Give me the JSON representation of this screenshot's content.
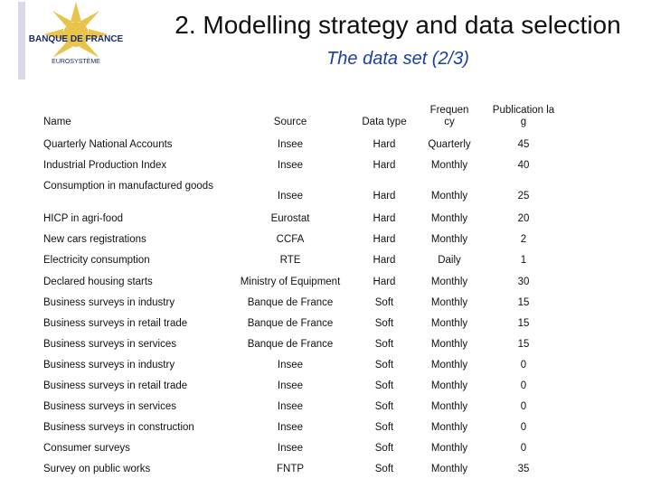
{
  "logo": {
    "name": "BANQUE DE FRANCE",
    "subtitle": "EUROSYSTÈME"
  },
  "header": {
    "title": "2. Modelling strategy and data selection",
    "subtitle": "The data set (2/3)"
  },
  "table": {
    "columns": [
      "Name",
      "Source",
      "Data type",
      "Frequency",
      "Publication lag"
    ],
    "rows": [
      [
        "Quarterly National Accounts",
        "Insee",
        "Hard",
        "Quarterly",
        "45"
      ],
      [
        "Industrial Production Index",
        "Insee",
        "Hard",
        "Monthly",
        "40"
      ],
      [
        "Consumption in manufactured goods",
        "Insee",
        "Hard",
        "Monthly",
        "25"
      ],
      [
        "HICP in agri-food",
        "Eurostat",
        "Hard",
        "Monthly",
        "20"
      ],
      [
        "New cars registrations",
        "CCFA",
        "Hard",
        "Monthly",
        "2"
      ],
      [
        "Electricity consumption",
        "RTE",
        "Hard",
        "Daily",
        "1"
      ],
      [
        "Declared housing starts",
        "Ministry of Equipment",
        "Hard",
        "Monthly",
        "30"
      ],
      [
        "Business surveys in industry",
        "Banque de France",
        "Soft",
        "Monthly",
        "15"
      ],
      [
        "Business surveys in retail trade",
        "Banque de France",
        "Soft",
        "Monthly",
        "15"
      ],
      [
        "Business surveys in services",
        "Banque de France",
        "Soft",
        "Monthly",
        "15"
      ],
      [
        "Business surveys in industry",
        "Insee",
        "Soft",
        "Monthly",
        "0"
      ],
      [
        "Business surveys in retail trade",
        "Insee",
        "Soft",
        "Monthly",
        "0"
      ],
      [
        "Business surveys in services",
        "Insee",
        "Soft",
        "Monthly",
        "0"
      ],
      [
        "Business surveys in construction",
        "Insee",
        "Soft",
        "Monthly",
        "0"
      ],
      [
        "Consumer surveys",
        "Insee",
        "Soft",
        "Monthly",
        "0"
      ],
      [
        "Survey on public works",
        "FNTP",
        "Soft",
        "Monthly",
        "35"
      ]
    ]
  }
}
